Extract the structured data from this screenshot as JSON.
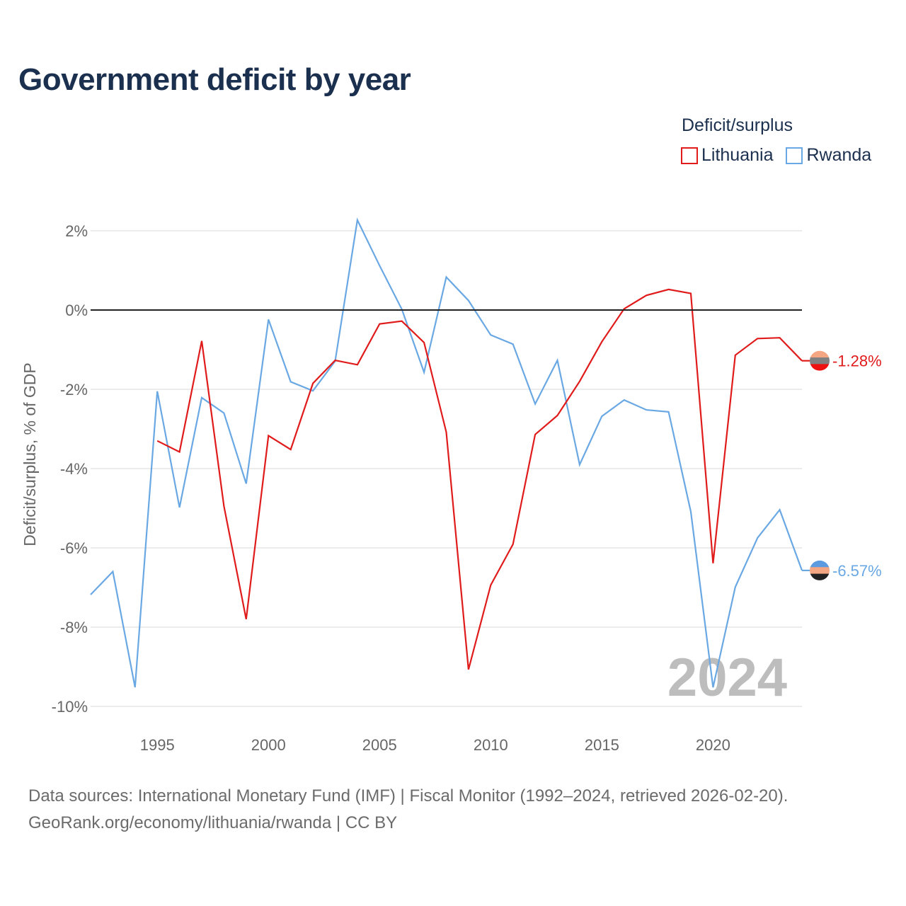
{
  "title": "Government deficit by year",
  "legend": {
    "title": "Deficit/surplus",
    "items": [
      "Lithuania",
      "Rwanda"
    ]
  },
  "footer": {
    "line1": "Data sources: International Monetary Fund (IMF) | Fiscal Monitor (1992–2024, retrieved 2026-02-20).",
    "line2": "GeoRank.org/economy/lithuania/rwanda | CC BY"
  },
  "colors": {
    "lithuania": "#e01b1b",
    "rwanda": "#6aa8e4",
    "grid": "#e6e6e6",
    "zero_line": "#222222",
    "tick": "#666666",
    "watermark": "#bdbdbd"
  },
  "chart_data": {
    "type": "line",
    "title": "Government deficit by year",
    "xlabel": "",
    "ylabel": "Deficit/surplus, % of GDP",
    "xlim": [
      1992,
      2024
    ],
    "ylim": [
      -10,
      2.5
    ],
    "y_ticks": [
      2,
      0,
      -2,
      -4,
      -6,
      -8,
      -10
    ],
    "y_tick_labels": [
      "2%",
      "0%",
      "-2%",
      "-4%",
      "-6%",
      "-8%",
      "-10%"
    ],
    "x_ticks": [
      1995,
      2000,
      2005,
      2010,
      2015,
      2020
    ],
    "x_tick_labels": [
      "1995",
      "2000",
      "2005",
      "2010",
      "2015",
      "2020"
    ],
    "watermark_year": "2024",
    "series": [
      {
        "name": "Lithuania",
        "color": "#e01b1b",
        "flag": [
          "#f4a582",
          "#808080",
          "#ee1111"
        ],
        "end_label": "-1.28%",
        "x": [
          1995,
          1996,
          1997,
          1998,
          1999,
          2000,
          2001,
          2002,
          2003,
          2004,
          2005,
          2006,
          2007,
          2008,
          2009,
          2010,
          2011,
          2012,
          2013,
          2014,
          2015,
          2016,
          2017,
          2018,
          2019,
          2020,
          2021,
          2022,
          2023,
          2024
        ],
        "values": [
          -3.3,
          -3.58,
          -0.78,
          -4.95,
          -7.8,
          -3.17,
          -3.52,
          -1.85,
          -1.27,
          -1.38,
          -0.35,
          -0.28,
          -0.82,
          -3.08,
          -9.07,
          -6.94,
          -5.91,
          -3.14,
          -2.66,
          -1.8,
          -0.8,
          0.03,
          0.37,
          0.52,
          0.42,
          -6.39,
          -1.14,
          -0.72,
          -0.7,
          -1.28
        ]
      },
      {
        "name": "Rwanda",
        "color": "#6aa8e4",
        "flag": [
          "#5c9be0",
          "#f4a582",
          "#222222"
        ],
        "end_label": "-6.57%",
        "x": [
          1992,
          1993,
          1994,
          1995,
          1996,
          1997,
          1998,
          1999,
          2000,
          2001,
          2002,
          2003,
          2004,
          2005,
          2006,
          2007,
          2008,
          2009,
          2010,
          2011,
          2012,
          2013,
          2014,
          2015,
          2016,
          2017,
          2018,
          2019,
          2020,
          2021,
          2022,
          2023,
          2024
        ],
        "values": [
          -7.18,
          -6.6,
          -9.52,
          -2.05,
          -4.98,
          -2.21,
          -2.6,
          -4.38,
          -0.24,
          -1.81,
          -2.04,
          -1.29,
          2.27,
          1.12,
          0.02,
          -1.57,
          0.83,
          0.24,
          -0.63,
          -0.86,
          -2.37,
          -1.27,
          -3.9,
          -2.68,
          -2.27,
          -2.52,
          -2.57,
          -5.09,
          -9.52,
          -6.99,
          -5.75,
          -5.04,
          -6.57
        ]
      }
    ]
  }
}
